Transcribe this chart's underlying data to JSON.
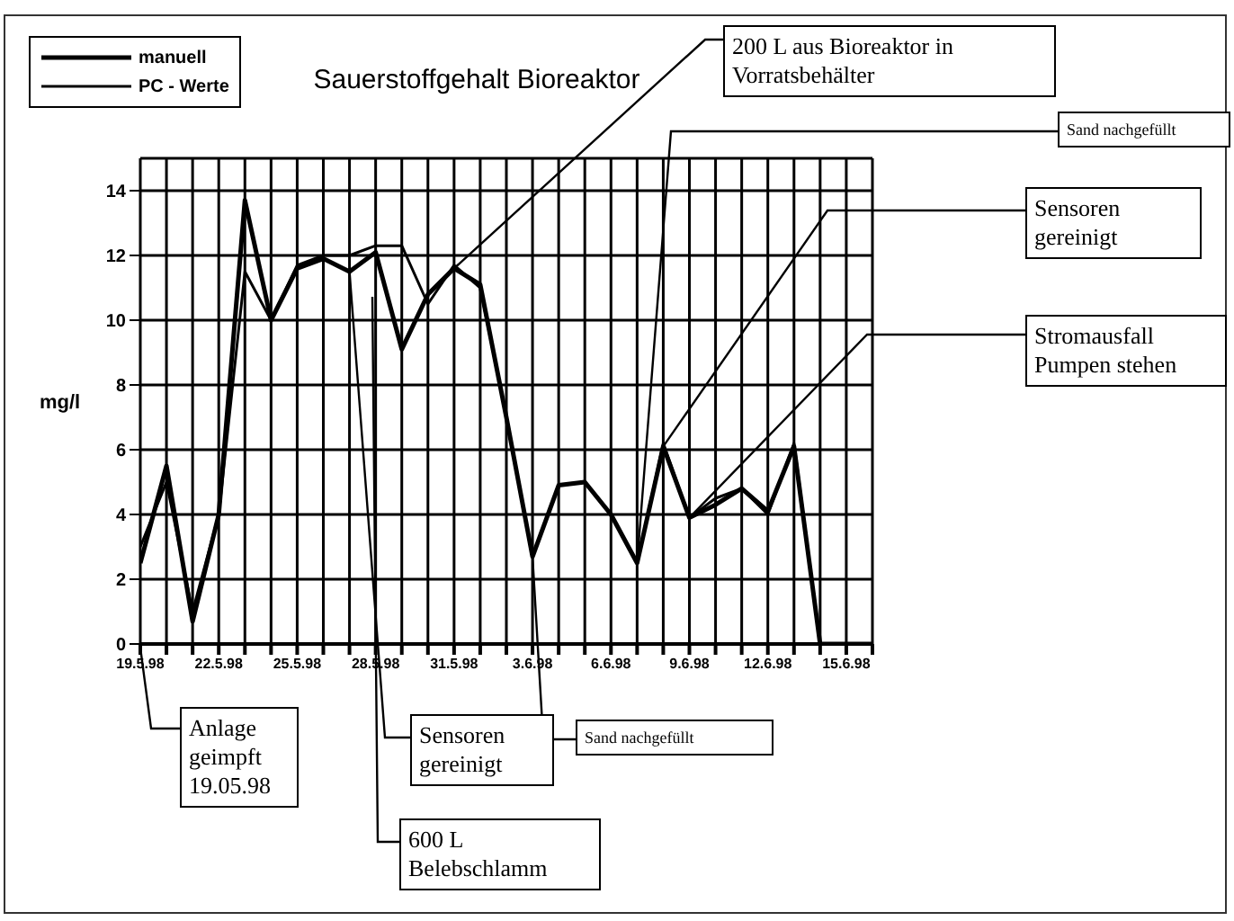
{
  "chart_data": {
    "type": "line",
    "title": "Sauerstoffgehalt Bioreaktor",
    "ylabel": "mg/l",
    "x": [
      "1998-05-19",
      "1998-05-20",
      "1998-05-21",
      "1998-05-22",
      "1998-05-23",
      "1998-05-24",
      "1998-05-25",
      "1998-05-26",
      "1998-05-27",
      "1998-05-28",
      "1998-05-29",
      "1998-05-30",
      "1998-05-31",
      "1998-06-01",
      "1998-06-02",
      "1998-06-03",
      "1998-06-04",
      "1998-06-05",
      "1998-06-06",
      "1998-06-07",
      "1998-06-08",
      "1998-06-09",
      "1998-06-10",
      "1998-06-11",
      "1998-06-12",
      "1998-06-13",
      "1998-06-14",
      "1998-06-15",
      "1998-06-16"
    ],
    "series": [
      {
        "name": "manuell",
        "color": "#000000",
        "values": [
          2.5,
          5.5,
          0.7,
          4,
          13.7,
          10,
          11.6,
          11.9,
          11.5,
          12.1,
          9.1,
          10.8,
          11.6,
          11.1,
          7,
          2.7,
          4.9,
          5,
          4,
          2.5,
          6.1,
          3.9,
          4.3,
          4.8,
          4.1,
          6.1,
          0,
          0,
          0
        ]
      },
      {
        "name": "PC - Werte",
        "color": "#000000",
        "values": [
          3,
          5,
          1,
          4,
          11.5,
          10,
          11.7,
          12,
          12,
          12.3,
          12.3,
          10.5,
          11.7,
          11,
          7,
          2.7,
          4.9,
          5,
          4,
          2.5,
          6.2,
          3.9,
          4.5,
          4.8,
          4,
          6.2,
          0,
          0,
          0
        ]
      }
    ],
    "xlim": [
      "1998-05-19",
      "1998-06-16"
    ],
    "xticks": [
      {
        "value": "1998-05-19",
        "label": "19.5.98"
      },
      {
        "value": "1998-05-20",
        "label": null
      },
      {
        "value": "1998-05-21",
        "label": null
      },
      {
        "value": "1998-05-22",
        "label": "22.5.98"
      },
      {
        "value": "1998-05-23",
        "label": null
      },
      {
        "value": "1998-05-24",
        "label": null
      },
      {
        "value": "1998-05-25",
        "label": "25.5.98"
      },
      {
        "value": "1998-05-26",
        "label": null
      },
      {
        "value": "1998-05-27",
        "label": null
      },
      {
        "value": "1998-05-28",
        "label": "28.5.98"
      },
      {
        "value": "1998-05-29",
        "label": null
      },
      {
        "value": "1998-05-30",
        "label": null
      },
      {
        "value": "1998-05-31",
        "label": "31.5.98"
      },
      {
        "value": "1998-06-01",
        "label": null
      },
      {
        "value": "1998-06-02",
        "label": null
      },
      {
        "value": "1998-06-03",
        "label": "3.6.98"
      },
      {
        "value": "1998-06-04",
        "label": null
      },
      {
        "value": "1998-06-05",
        "label": null
      },
      {
        "value": "1998-06-06",
        "label": "6.6.98"
      },
      {
        "value": "1998-06-07",
        "label": null
      },
      {
        "value": "1998-06-08",
        "label": null
      },
      {
        "value": "1998-06-09",
        "label": "9.6.98"
      },
      {
        "value": "1998-06-10",
        "label": null
      },
      {
        "value": "1998-06-11",
        "label": null
      },
      {
        "value": "1998-06-12",
        "label": "12.6.98"
      },
      {
        "value": "1998-06-13",
        "label": null
      },
      {
        "value": "1998-06-14",
        "label": null
      },
      {
        "value": "1998-06-15",
        "label": "15.6.98"
      },
      {
        "value": "1998-06-16",
        "label": null
      }
    ],
    "ylim": [
      0,
      15
    ],
    "yticks": [
      0,
      2,
      4,
      6,
      8,
      10,
      12,
      14
    ],
    "grid": true,
    "legend": "top left",
    "marker": "none",
    "line_style": "solid",
    "annotations": [
      {
        "text": "200 L aus Bioreaktor in Vorratsbehälter",
        "x": "1998-05-31",
        "y": 11.6
      },
      {
        "text": "Sand nachgefüllt",
        "x": "1998-06-07",
        "y": 2.5
      },
      {
        "text": "Sensoren gereinigt",
        "x": "1998-06-08",
        "y": 6.1
      },
      {
        "text": "Stromausfall Pumpen stehen",
        "x": "1998-06-09",
        "y": 3.9
      },
      "Anlage geimpft 19.05.98",
      {
        "text": "Sensoren gereinigt",
        "x": "1998-05-27",
        "y": 11.5
      },
      {
        "text": "Sand nachgefüllt",
        "x": "1998-06-03",
        "y": 2.7
      },
      "600 L Belebschlamm"
    ]
  }
}
